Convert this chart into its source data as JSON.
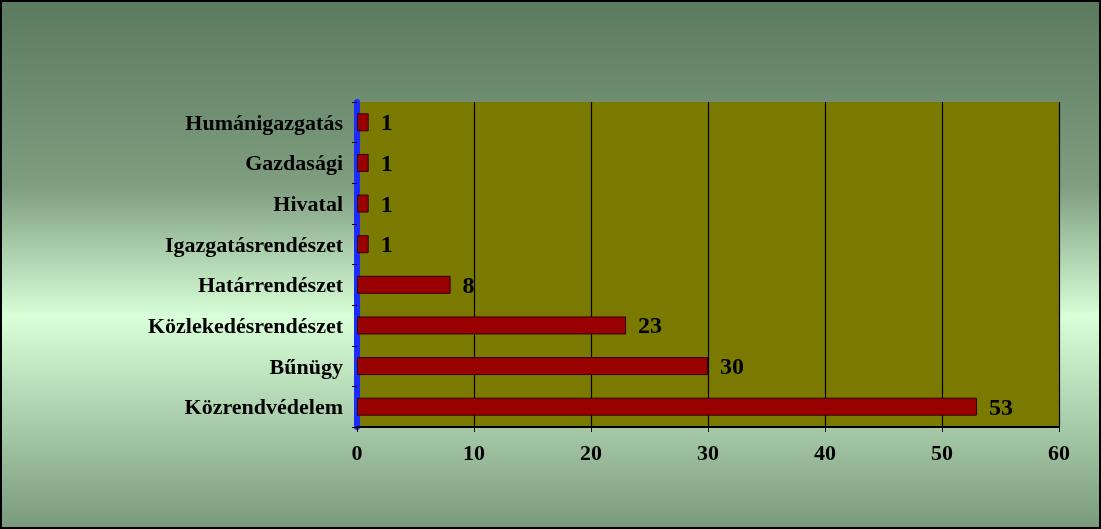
{
  "chart_data": {
    "type": "bar",
    "orientation": "horizontal",
    "categories": [
      "Humánigazgatás",
      "Gazdasági",
      "Hivatal",
      "Igazgatásrendészet",
      "Határrendészet",
      "Közlekedésrendészet",
      "Bűnügy",
      "Közrendvédelem"
    ],
    "values": [
      1,
      1,
      1,
      1,
      8,
      23,
      30,
      53
    ],
    "color": "#990000",
    "xlim": [
      0,
      60
    ],
    "xticks": [
      0,
      10,
      20,
      30,
      40,
      50,
      60
    ],
    "grid": "x",
    "data_labels": true
  }
}
